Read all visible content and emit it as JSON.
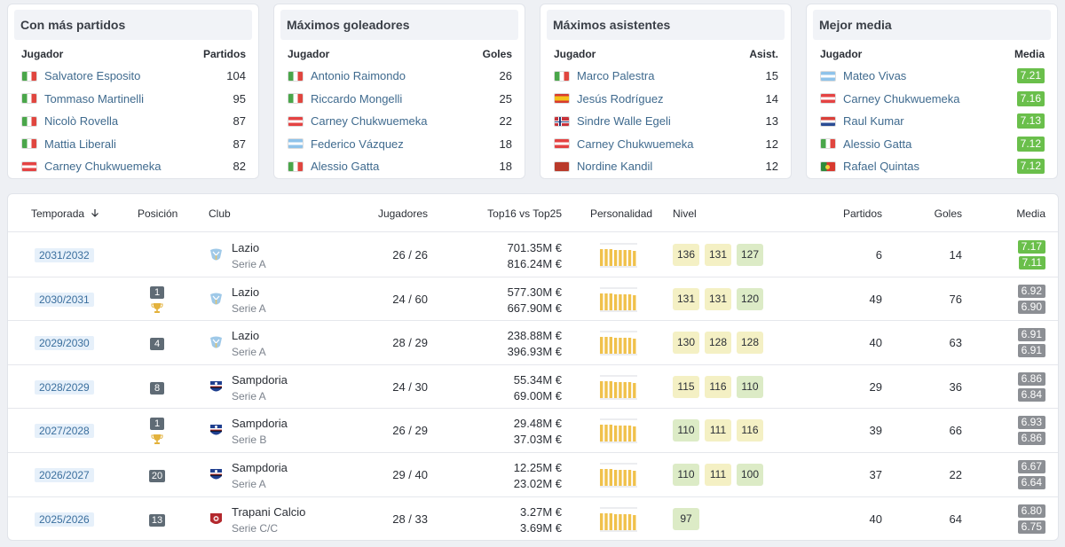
{
  "top_cards": [
    {
      "title": "Con más partidos",
      "col_player": "Jugador",
      "col_value": "Partidos",
      "rows": [
        {
          "flag": "it",
          "name": "Salvatore Esposito",
          "value": "104"
        },
        {
          "flag": "it",
          "name": "Tommaso Martinelli",
          "value": "95"
        },
        {
          "flag": "it",
          "name": "Nicolò Rovella",
          "value": "87"
        },
        {
          "flag": "it",
          "name": "Mattia Liberali",
          "value": "87"
        },
        {
          "flag": "at",
          "name": "Carney Chukwuemeka",
          "value": "82"
        }
      ]
    },
    {
      "title": "Máximos goleadores",
      "col_player": "Jugador",
      "col_value": "Goles",
      "rows": [
        {
          "flag": "it",
          "name": "Antonio Raimondo",
          "value": "26"
        },
        {
          "flag": "it",
          "name": "Riccardo Mongelli",
          "value": "25"
        },
        {
          "flag": "at",
          "name": "Carney Chukwuemeka",
          "value": "22"
        },
        {
          "flag": "ar",
          "name": "Federico Vázquez",
          "value": "18"
        },
        {
          "flag": "it",
          "name": "Alessio Gatta",
          "value": "18"
        }
      ]
    },
    {
      "title": "Máximos asistentes",
      "col_player": "Jugador",
      "col_value": "Asist.",
      "rows": [
        {
          "flag": "it",
          "name": "Marco Palestra",
          "value": "15"
        },
        {
          "flag": "es",
          "name": "Jesús Rodríguez",
          "value": "14"
        },
        {
          "flag": "no",
          "name": "Sindre Walle Egeli",
          "value": "13"
        },
        {
          "flag": "at",
          "name": "Carney Chukwuemeka",
          "value": "12"
        },
        {
          "flag": "ma",
          "name": "Nordine Kandil",
          "value": "12"
        }
      ]
    },
    {
      "title": "Mejor media",
      "col_player": "Jugador",
      "col_value": "Media",
      "rows": [
        {
          "flag": "ar",
          "name": "Mateo Vivas",
          "value": "7.21"
        },
        {
          "flag": "at",
          "name": "Carney Chukwuemeka",
          "value": "7.16"
        },
        {
          "flag": "hr",
          "name": "Raul Kumar",
          "value": "7.13"
        },
        {
          "flag": "it",
          "name": "Alessio Gatta",
          "value": "7.12"
        },
        {
          "flag": "pt",
          "name": "Rafael Quintas",
          "value": "7.12"
        }
      ]
    }
  ],
  "table": {
    "headers": {
      "temporada": "Temporada",
      "sort_icon": "arrow-down-icon",
      "posicion": "Posición",
      "club": "Club",
      "jugadores": "Jugadores",
      "top": "Top16 vs Top25",
      "personalidad": "Personalidad",
      "nivel": "Nivel",
      "partidos": "Partidos",
      "goles": "Goles",
      "media": "Media"
    },
    "rows": [
      {
        "season": "2031/2032",
        "pos": "",
        "trophy": false,
        "crest": "lazio",
        "club": "Lazio",
        "league": "Serie A",
        "players": "26 / 26",
        "top16": "701.35M €",
        "top25": "816.24M €",
        "nivel": [
          {
            "v": "136",
            "c": "y"
          },
          {
            "v": "131",
            "c": "y"
          },
          {
            "v": "127",
            "c": "g"
          }
        ],
        "partidos": "6",
        "goles": "14",
        "media": [
          {
            "v": "7.17",
            "c": "g"
          },
          {
            "v": "7.11",
            "c": "g"
          }
        ]
      },
      {
        "season": "2030/2031",
        "pos": "1",
        "trophy": true,
        "crest": "lazio",
        "club": "Lazio",
        "league": "Serie A",
        "players": "24 / 60",
        "top16": "577.30M €",
        "top25": "667.90M €",
        "nivel": [
          {
            "v": "131",
            "c": "y"
          },
          {
            "v": "131",
            "c": "y"
          },
          {
            "v": "120",
            "c": "g"
          }
        ],
        "partidos": "49",
        "goles": "76",
        "media": [
          {
            "v": "6.92",
            "c": "k"
          },
          {
            "v": "6.90",
            "c": "k"
          }
        ]
      },
      {
        "season": "2029/2030",
        "pos": "4",
        "trophy": false,
        "crest": "lazio",
        "club": "Lazio",
        "league": "Serie A",
        "players": "28 / 29",
        "top16": "238.88M €",
        "top25": "396.93M €",
        "nivel": [
          {
            "v": "130",
            "c": "y"
          },
          {
            "v": "128",
            "c": "y"
          },
          {
            "v": "128",
            "c": "y"
          }
        ],
        "partidos": "40",
        "goles": "63",
        "media": [
          {
            "v": "6.91",
            "c": "k"
          },
          {
            "v": "6.91",
            "c": "k"
          }
        ]
      },
      {
        "season": "2028/2029",
        "pos": "8",
        "trophy": false,
        "crest": "sampdoria",
        "club": "Sampdoria",
        "league": "Serie A",
        "players": "24 / 30",
        "top16": "55.34M €",
        "top25": "69.00M €",
        "nivel": [
          {
            "v": "115",
            "c": "y"
          },
          {
            "v": "116",
            "c": "y"
          },
          {
            "v": "110",
            "c": "g"
          }
        ],
        "partidos": "29",
        "goles": "36",
        "media": [
          {
            "v": "6.86",
            "c": "k"
          },
          {
            "v": "6.84",
            "c": "k"
          }
        ]
      },
      {
        "season": "2027/2028",
        "pos": "1",
        "trophy": true,
        "crest": "sampdoria",
        "club": "Sampdoria",
        "league": "Serie B",
        "players": "26 / 29",
        "top16": "29.48M €",
        "top25": "37.03M €",
        "nivel": [
          {
            "v": "110",
            "c": "g"
          },
          {
            "v": "111",
            "c": "y"
          },
          {
            "v": "116",
            "c": "y"
          }
        ],
        "partidos": "39",
        "goles": "66",
        "media": [
          {
            "v": "6.93",
            "c": "k"
          },
          {
            "v": "6.86",
            "c": "k"
          }
        ]
      },
      {
        "season": "2026/2027",
        "pos": "20",
        "trophy": false,
        "crest": "sampdoria",
        "club": "Sampdoria",
        "league": "Serie A",
        "players": "29 / 40",
        "top16": "12.25M €",
        "top25": "23.02M €",
        "nivel": [
          {
            "v": "110",
            "c": "g"
          },
          {
            "v": "111",
            "c": "y"
          },
          {
            "v": "100",
            "c": "g"
          }
        ],
        "partidos": "37",
        "goles": "22",
        "media": [
          {
            "v": "6.67",
            "c": "k"
          },
          {
            "v": "6.64",
            "c": "k"
          }
        ]
      },
      {
        "season": "2025/2026",
        "pos": "13",
        "trophy": false,
        "crest": "trapani",
        "club": "Trapani Calcio",
        "league": "Serie C/C",
        "players": "28 / 33",
        "top16": "3.27M €",
        "top25": "3.69M €",
        "nivel": [
          {
            "v": "97",
            "c": "g"
          }
        ],
        "partidos": "40",
        "goles": "64",
        "media": [
          {
            "v": "6.80",
            "c": "k"
          },
          {
            "v": "6.75",
            "c": "k"
          }
        ]
      }
    ]
  }
}
